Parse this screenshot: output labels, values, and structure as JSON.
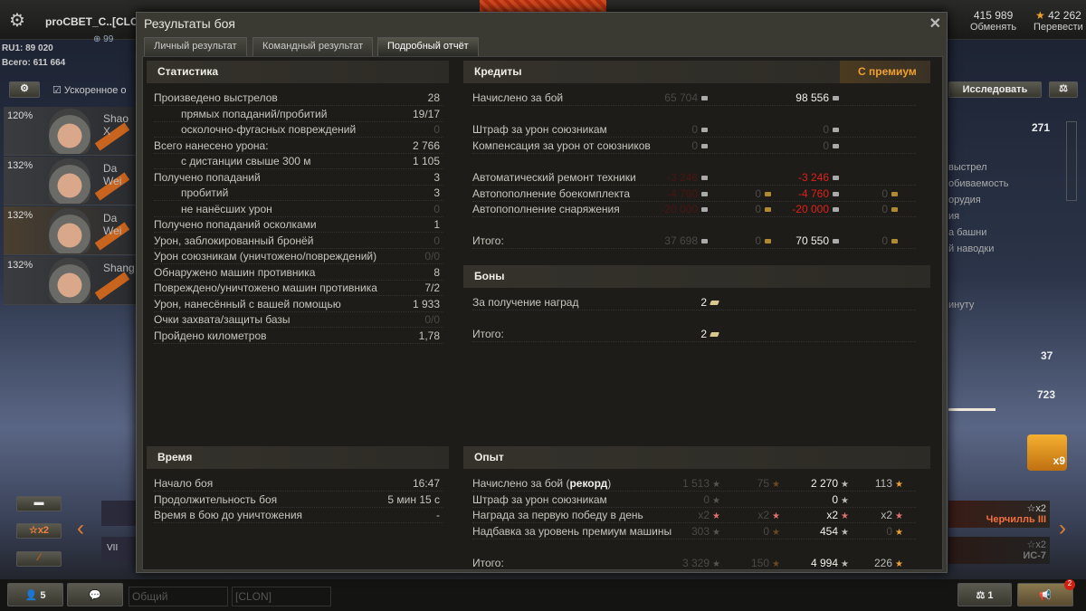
{
  "topbar": {
    "player": "proCBET_C..[CLON]",
    "level": "99",
    "region_line": "RU1: 89 020",
    "total_line": "Всего: 611 664",
    "credits": "415 989",
    "exchange": "Обменять",
    "gold": "42 262",
    "convert": "Перевести"
  },
  "left_panel": {
    "accelerated_label": "Ускоренное о",
    "crew": [
      {
        "pct": "120%",
        "name": "Shao X"
      },
      {
        "pct": "132%",
        "name": "Da Wei"
      },
      {
        "pct": "132%",
        "name": "Da Wei"
      },
      {
        "pct": "132%",
        "name": "Shang"
      }
    ]
  },
  "right_panel": {
    "research": "Исследовать",
    "v1": "271",
    "items": [
      "выстрел",
      "обиваемость",
      "орудия",
      "ия",
      "а башни",
      "й наводки",
      "инуту"
    ],
    "v2": "37",
    "v3": "723",
    "gift_count": "x9"
  },
  "carousel": {
    "xp_bonus": "x2",
    "vehicles": [
      {
        "name": "Черчилль III",
        "bonus": "x2"
      },
      {
        "name": "ИС-7",
        "bonus": "x2"
      }
    ],
    "tier": "VII"
  },
  "bottom": {
    "platoon_count": "5",
    "chat_channel": "Общий",
    "clan_channel": "[CLON]",
    "compare_count": "1",
    "notifications": "2"
  },
  "window": {
    "title": "Результаты боя",
    "tabs": [
      "Личный результат",
      "Командный результат",
      "Подробный отчёт"
    ],
    "active_tab": 2
  },
  "stats": {
    "title": "Статистика",
    "rows": [
      {
        "label": "Произведено выстрелов",
        "value": "28",
        "indent": false,
        "dim": false
      },
      {
        "label": "прямых попаданий/пробитий",
        "value": "19/17",
        "indent": true,
        "dim": false
      },
      {
        "label": "осколочно-фугасных повреждений",
        "value": "0",
        "indent": true,
        "dim": true
      },
      {
        "label": "Всего нанесено урона:",
        "value": "2 766",
        "indent": false,
        "dim": false
      },
      {
        "label": "с дистанции свыше 300 м",
        "value": "1 105",
        "indent": true,
        "dim": false
      },
      {
        "label": "Получено попаданий",
        "value": "3",
        "indent": false,
        "dim": false
      },
      {
        "label": "пробитий",
        "value": "3",
        "indent": true,
        "dim": false
      },
      {
        "label": "не нанёсших урон",
        "value": "0",
        "indent": true,
        "dim": true
      },
      {
        "label": "Получено попаданий осколками",
        "value": "1",
        "indent": false,
        "dim": false
      },
      {
        "label": "Урон, заблокированный бронёй",
        "value": "0",
        "indent": false,
        "dim": true
      },
      {
        "label": "Урон союзникам (уничтожено/повреждений)",
        "value": "0/0",
        "indent": false,
        "dim": true
      },
      {
        "label": "Обнаружено машин противника",
        "value": "8",
        "indent": false,
        "dim": false
      },
      {
        "label": "Повреждено/уничтожено машин противника",
        "value": "7/2",
        "indent": false,
        "dim": false
      },
      {
        "label": "Урон, нанесённый с вашей помощью",
        "value": "1 933",
        "indent": false,
        "dim": false
      },
      {
        "label": "Очки захвата/защиты базы",
        "value": "0/0",
        "indent": false,
        "dim": true
      },
      {
        "label": "Пройдено километров",
        "value": "1,78",
        "indent": false,
        "dim": false
      }
    ]
  },
  "time": {
    "title": "Время",
    "rows": [
      {
        "label": "Начало боя",
        "value": "16:47"
      },
      {
        "label": "Продолжительность боя",
        "value": "5 мин 15 с"
      },
      {
        "label": "Время в бою до уничтожения",
        "value": "-"
      }
    ]
  },
  "credits": {
    "title": "Кредиты",
    "premium_label": "С премиум",
    "rows": [
      {
        "label": "Начислено за бой",
        "c1": "65 704",
        "c2": "",
        "c3": "98 556",
        "c4": "",
        "style": "normal"
      },
      {
        "label": "Штраф за урон союзникам",
        "c1": "0",
        "c2": "",
        "c3": "0",
        "c4": "",
        "style": "zero"
      },
      {
        "label": "Компенсация за урон от союзников",
        "c1": "0",
        "c2": "",
        "c3": "0",
        "c4": "",
        "style": "zero"
      },
      {
        "label": "Автоматический ремонт техники",
        "c1": "-3 246",
        "c2": "",
        "c3": "-3 246",
        "c4": "",
        "style": "red"
      },
      {
        "label": "Автопополнение боекомплекта",
        "c1": "-4 760",
        "c2": "0",
        "c3": "-4 760",
        "c4": "0",
        "style": "red"
      },
      {
        "label": "Автопополнение снаряжения",
        "c1": "-20 000",
        "c2": "0",
        "c3": "-20 000",
        "c4": "0",
        "style": "red"
      },
      {
        "label": "Итого:",
        "c1": "37 698",
        "c2": "0",
        "c3": "70 550",
        "c4": "0",
        "style": "normal"
      }
    ]
  },
  "bonds": {
    "title": "Боны",
    "rows": [
      {
        "label": "За получение наград",
        "value": "2"
      },
      {
        "label": "Итого:",
        "value": "2"
      }
    ]
  },
  "xp": {
    "title": "Опыт",
    "record_label": "рекорд",
    "rows": [
      {
        "label": "Начислено за бой",
        "c1": "1 513",
        "c2": "75",
        "c3": "2 270",
        "c4": "113"
      },
      {
        "label": "Штраф за урон союзникам",
        "c1": "0",
        "c2": "",
        "c3": "0",
        "c4": ""
      },
      {
        "label": "Награда за первую победу в день",
        "c1": "x2",
        "c2": "x2",
        "c3": "x2",
        "c4": "x2"
      },
      {
        "label": "Надбавка за уровень премиум машины",
        "c1": "303",
        "c2": "0",
        "c3": "454",
        "c4": "0"
      },
      {
        "label": "Итого:",
        "c1": "3 329",
        "c2": "150",
        "c3": "4 994",
        "c4": "226"
      }
    ]
  }
}
